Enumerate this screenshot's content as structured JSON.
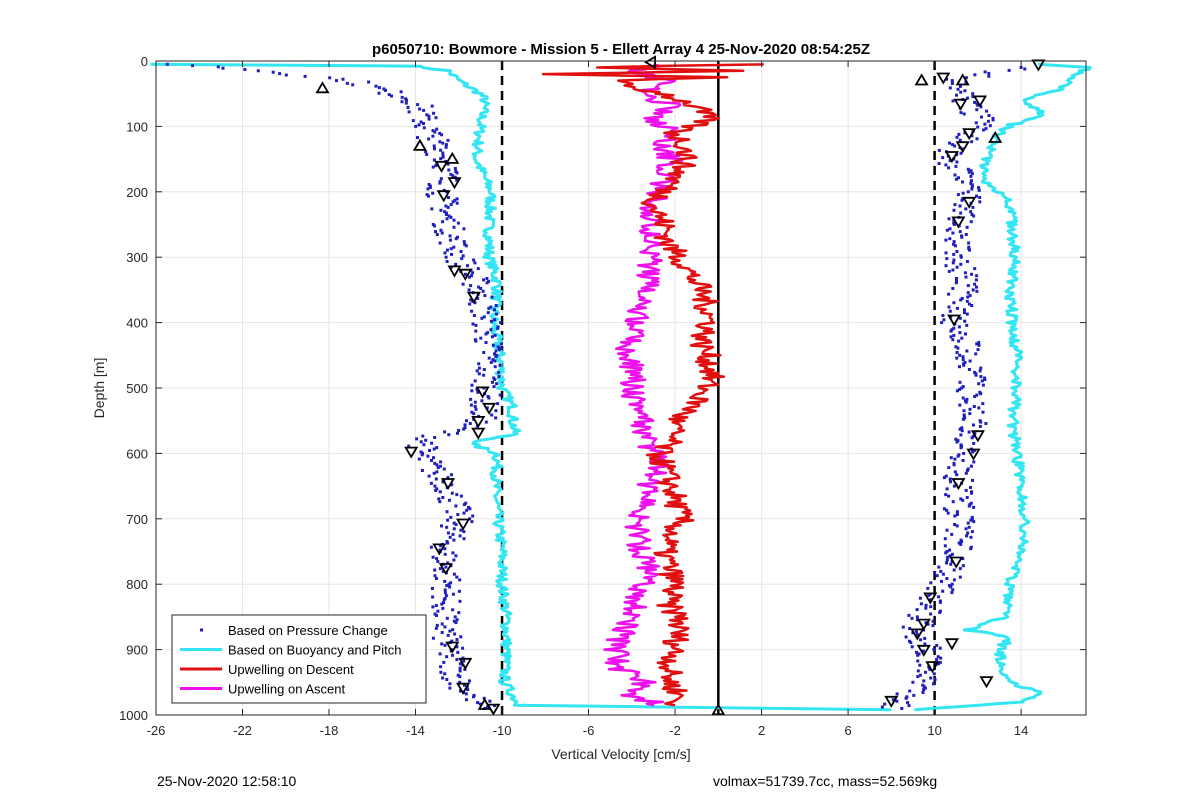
{
  "chart_data": {
    "type": "scatter",
    "title": "p6050710: Bowmore - Mission 5 - Ellett Array 4 25-Nov-2020 08:54:25Z",
    "xlabel": "Vertical Velocity [cm/s]",
    "ylabel": "Depth [m]",
    "xlim": [
      -26,
      17
    ],
    "ylim": [
      0,
      1000
    ],
    "y_reversed": true,
    "grid": true,
    "x_ticks": [
      -26,
      -22,
      -18,
      -14,
      -10,
      -6,
      -2,
      2,
      6,
      10,
      14
    ],
    "y_ticks": [
      0,
      100,
      200,
      300,
      400,
      500,
      600,
      700,
      800,
      900,
      1000
    ],
    "legend_position": "bottom-left",
    "reference_lines": [
      {
        "x": -10,
        "style": "dashed"
      },
      {
        "x": 10,
        "style": "dashed"
      },
      {
        "x": 0,
        "style": "solid"
      }
    ],
    "series": [
      {
        "name": "Based on Pressure Change",
        "kind": "points",
        "color": "#1f1fbf",
        "descent": {
          "depth": [
            5,
            15,
            30,
            60,
            100,
            130,
            160,
            200,
            250,
            300,
            350,
            400,
            450,
            500,
            550,
            580,
            600,
            650,
            700,
            750,
            800,
            850,
            900,
            950,
            990
          ],
          "velocity": [
            -25,
            -21,
            -17,
            -14,
            -13.5,
            -13,
            -12.5,
            -12.8,
            -12.5,
            -12,
            -11,
            -10.7,
            -10.6,
            -10.7,
            -11,
            -13.5,
            -13.8,
            -12.5,
            -12,
            -12.7,
            -12.5,
            -12.7,
            -12.5,
            -12,
            -10.8
          ]
        },
        "ascent": {
          "depth": [
            990,
            950,
            900,
            870,
            850,
            830,
            800,
            750,
            700,
            650,
            600,
            550,
            500,
            450,
            400,
            350,
            300,
            250,
            200,
            170,
            150,
            130,
            110,
            90,
            70,
            50,
            30,
            10
          ],
          "velocity": [
            8,
            9.5,
            9.7,
            9.2,
            9.4,
            9.8,
            10.5,
            11,
            11.2,
            11,
            11.5,
            11.8,
            11.7,
            11.6,
            11,
            11.3,
            11.2,
            11,
            11.6,
            11.4,
            10.3,
            11,
            11.8,
            12.2,
            11.5,
            11.2,
            10.8,
            14
          ]
        }
      },
      {
        "name": "Based on Buoyancy and Pitch",
        "kind": "line",
        "color": "#33e6f2",
        "descent": {
          "depth": [
            5,
            8,
            15,
            30,
            50,
            60,
            80,
            100,
            150,
            200,
            250,
            300,
            340,
            400,
            450,
            500,
            530,
            550,
            570,
            585,
            600,
            650,
            700,
            750,
            800,
            850,
            900,
            950,
            985,
            992
          ],
          "velocity": [
            -26,
            -14,
            -12.5,
            -12,
            -11,
            -10.8,
            -10.9,
            -11,
            -11.2,
            -10.5,
            -10.6,
            -10.6,
            -10.2,
            -10.4,
            -10.1,
            -10,
            -9.5,
            -9.5,
            -9.4,
            -11.5,
            -10.2,
            -10.3,
            -10.2,
            -10,
            -10,
            -9.8,
            -9.8,
            -9.9,
            -9.2,
            8
          ]
        },
        "ascent": {
          "depth": [
            992,
            980,
            965,
            950,
            930,
            900,
            880,
            870,
            850,
            800,
            750,
            700,
            650,
            600,
            550,
            500,
            450,
            400,
            350,
            300,
            250,
            210,
            190,
            160,
            140,
            120,
            100,
            80,
            60,
            40,
            25,
            10,
            5
          ],
          "velocity": [
            9,
            14,
            14.8,
            13.5,
            13.2,
            13,
            13.5,
            11.5,
            13.2,
            13.5,
            14,
            14.2,
            14,
            13.8,
            13.6,
            13.8,
            13.8,
            13.6,
            13.5,
            13.7,
            13.6,
            13.5,
            12.4,
            12.2,
            12.5,
            12.8,
            13.4,
            15,
            14.2,
            16,
            16.5,
            17,
            14.8
          ]
        }
      },
      {
        "name": "Upwelling on Descent",
        "kind": "line",
        "color": "#e01010",
        "depth": [
          5,
          10,
          15,
          20,
          25,
          30,
          40,
          50,
          70,
          90,
          110,
          130,
          150,
          180,
          200,
          220,
          250,
          280,
          300,
          330,
          350,
          380,
          400,
          430,
          450,
          480,
          500,
          530,
          550,
          580,
          600,
          620,
          650,
          680,
          700,
          730,
          750,
          780,
          800,
          830,
          850,
          880,
          900,
          930,
          950,
          970,
          985
        ],
        "velocity": [
          2,
          -6,
          1,
          -8,
          0.5,
          -5,
          -4,
          -2.5,
          -1,
          -0.5,
          -2,
          -1.5,
          -1.5,
          -2,
          -2.5,
          -3,
          -2.5,
          -2.3,
          -1.8,
          -1.2,
          -0.8,
          -0.5,
          -0.4,
          -0.8,
          -0.5,
          -0.3,
          -0.6,
          -1.2,
          -2,
          -2.2,
          -2.8,
          -2.5,
          -2.2,
          -1.9,
          -1.7,
          -2.3,
          -2.5,
          -2.2,
          -2,
          -2.4,
          -1.8,
          -1.9,
          -2,
          -2.3,
          -2.2,
          -1.8,
          -2
        ]
      },
      {
        "name": "Upwelling on Ascent",
        "kind": "line",
        "color": "#ee11ee",
        "depth": [
          985,
          970,
          950,
          930,
          900,
          880,
          850,
          820,
          800,
          780,
          750,
          720,
          700,
          680,
          650,
          620,
          600,
          580,
          550,
          520,
          500,
          480,
          450,
          420,
          400,
          380,
          350,
          320,
          300,
          280,
          250,
          220,
          200,
          180,
          150,
          130,
          110,
          90,
          70,
          50,
          30,
          15,
          5
        ],
        "velocity": [
          -2.5,
          -4,
          -3.5,
          -4.5,
          -4.8,
          -4.5,
          -4,
          -3.8,
          -3.5,
          -3.2,
          -3.5,
          -3.8,
          -3.6,
          -3.3,
          -3.2,
          -2.8,
          -3,
          -3.2,
          -3.6,
          -3.9,
          -4,
          -3.8,
          -4.2,
          -4,
          -3.8,
          -3.6,
          -3.4,
          -3.2,
          -3.2,
          -2.9,
          -3.1,
          -3,
          -2.8,
          -2.5,
          -2.2,
          -2.6,
          -1.8,
          -3.2,
          -2,
          -3.5,
          -2.5,
          -4,
          -3
        ]
      }
    ],
    "markers": {
      "up_triangles": [
        [
          -18.3,
          42
        ],
        [
          -13.8,
          130
        ],
        [
          -12.3,
          150
        ],
        [
          -10.8,
          985
        ],
        [
          9.4,
          30
        ],
        [
          11.3,
          30
        ],
        [
          12.8,
          118
        ],
        [
          0,
          993
        ]
      ],
      "down_triangles": [
        [
          -12.8,
          160
        ],
        [
          -12.2,
          185
        ],
        [
          -12.7,
          205
        ],
        [
          -12.2,
          320
        ],
        [
          -11.3,
          360
        ],
        [
          -11.7,
          325
        ],
        [
          -10.9,
          505
        ],
        [
          -10.6,
          530
        ],
        [
          -11.1,
          550
        ],
        [
          -11.1,
          568
        ],
        [
          -14.2,
          597
        ],
        [
          -12.5,
          645
        ],
        [
          -11.8,
          707
        ],
        [
          -12.9,
          745
        ],
        [
          -12.6,
          775
        ],
        [
          -12.3,
          895
        ],
        [
          -11.7,
          920
        ],
        [
          -11.8,
          958
        ],
        [
          -10.4,
          990
        ],
        [
          14.8,
          5
        ],
        [
          10.4,
          25
        ],
        [
          12.1,
          60
        ],
        [
          11.2,
          65
        ],
        [
          11.6,
          110
        ],
        [
          11.3,
          130
        ],
        [
          10.8,
          145
        ],
        [
          11.6,
          215
        ],
        [
          11.1,
          245
        ],
        [
          10.9,
          395
        ],
        [
          12,
          572
        ],
        [
          11.8,
          600
        ],
        [
          11.1,
          645
        ],
        [
          11,
          765
        ],
        [
          9.8,
          820
        ],
        [
          9.5,
          860
        ],
        [
          9.2,
          875
        ],
        [
          10.8,
          890
        ],
        [
          9.5,
          900
        ],
        [
          9.9,
          925
        ],
        [
          12.4,
          948
        ],
        [
          8,
          978
        ]
      ],
      "left_triangles": [
        [
          -3.1,
          2
        ]
      ]
    },
    "legend": [
      "Based on Pressure Change",
      "Based on Buoyancy and Pitch",
      "Upwelling on Descent",
      "Upwelling on Ascent"
    ]
  },
  "footer": {
    "timestamp": "25-Nov-2020 12:58:10",
    "info": "volmax=51739.7cc, mass=52.569kg"
  }
}
